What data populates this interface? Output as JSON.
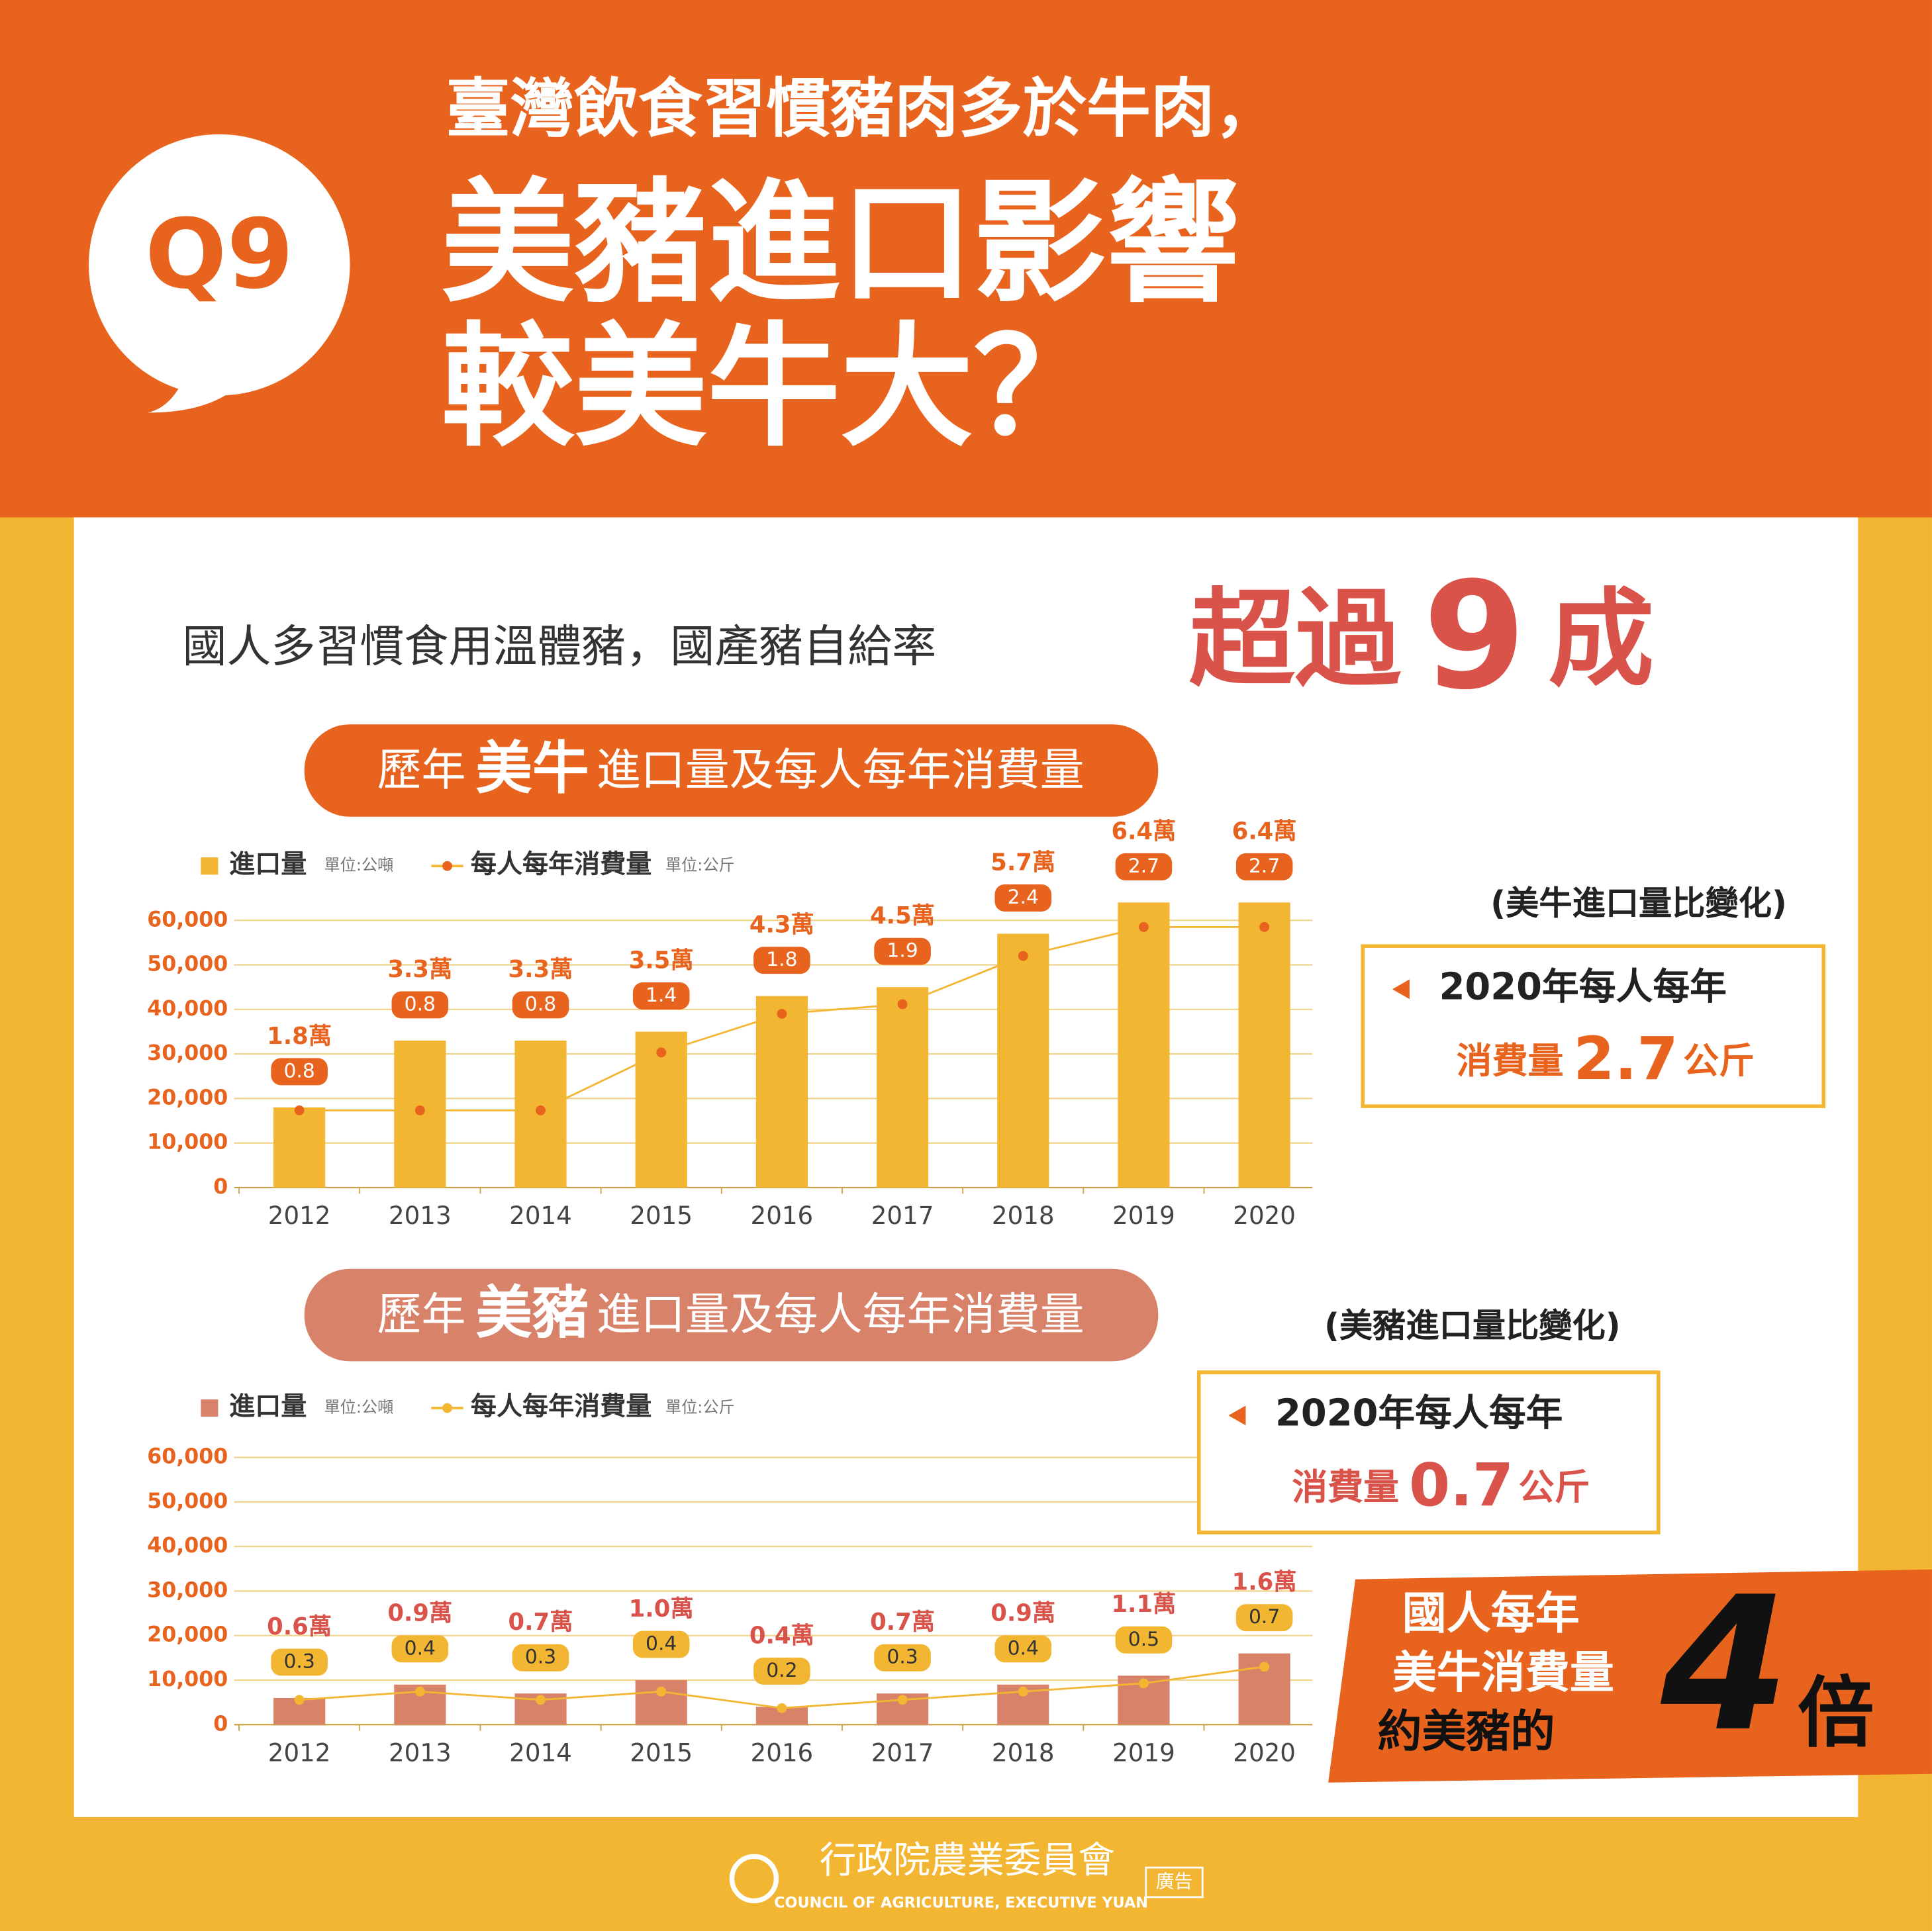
{
  "header": {
    "badge": "Q9",
    "line1": "臺灣飲食習慣豬肉多於牛肉，",
    "line2": "美豬進口影響",
    "line3": "較美牛大？"
  },
  "intro": {
    "text": "國人多習慣食用溫體豬，國產豬自給率",
    "highlight_prefix": "超過",
    "highlight_number": 9,
    "highlight_suffix": "成"
  },
  "chart_data": [
    {
      "type": "combo",
      "title_prefix": "歷年",
      "title_highlight": "美牛",
      "title_suffix": "進口量及每人每年消費量",
      "title_color": "#e8641e",
      "categories": [
        "2012",
        "2013",
        "2014",
        "2015",
        "2016",
        "2017",
        "2018",
        "2019",
        "2020"
      ],
      "series": [
        {
          "name": "進口量",
          "unit": "單位:公噸",
          "color": "#f2b632",
          "label_color": "#e8641e",
          "values": [
            18000,
            33000,
            33000,
            35000,
            43000,
            45000,
            57000,
            64000,
            64000
          ],
          "value_labels": [
            "1.8萬",
            "3.3萬",
            "3.3萬",
            "3.5萬",
            "4.3萬",
            "4.5萬",
            "5.7萬",
            "6.4萬",
            "6.4萬"
          ]
        },
        {
          "name": "每人每年消費量",
          "unit": "單位:公斤",
          "color": "#f2b632",
          "marker_color": "#e8641e",
          "label_color": "#ffffff",
          "axis": "y2",
          "values": [
            0.8,
            0.8,
            0.8,
            1.4,
            1.8,
            1.9,
            2.4,
            2.7,
            2.7
          ]
        }
      ],
      "ylim": [
        0,
        65000
      ],
      "yticks": [
        0,
        {
          "value": 10000,
          "label": "10,000"
        },
        {
          "value": 20000,
          "label": "20,000"
        },
        {
          "value": 30000,
          "label": "30,000"
        },
        {
          "value": 40000,
          "label": "40,000"
        },
        {
          "value": 50000,
          "label": "50,000"
        },
        {
          "value": 60000,
          "label": "60,000"
        }
      ],
      "y2lim": [
        0,
        3
      ],
      "grid": true,
      "callout": {
        "note": "(美牛進口量比變化)",
        "line1": "2020年每人每年",
        "label": "消費量",
        "value": 2.7,
        "unit": "公斤",
        "color": "#e8641e"
      }
    },
    {
      "type": "combo",
      "title_prefix": "歷年",
      "title_highlight": "美豬",
      "title_suffix": "進口量及每人每年消費量",
      "title_color": "#d9826a",
      "categories": [
        "2012",
        "2013",
        "2014",
        "2015",
        "2016",
        "2017",
        "2018",
        "2019",
        "2020"
      ],
      "series": [
        {
          "name": "進口量",
          "unit": "單位:公噸",
          "color": "#d9826a",
          "label_color": "#d9534a",
          "values": [
            6000,
            9000,
            7000,
            10000,
            4000,
            7000,
            9000,
            11000,
            16000
          ],
          "value_labels": [
            "0.6萬",
            "0.9萬",
            "0.7萬",
            "1.0萬",
            "0.4萬",
            "0.7萬",
            "0.9萬",
            "1.1萬",
            "1.6萬"
          ]
        },
        {
          "name": "每人每年消費量",
          "unit": "單位:公斤",
          "color": "#f2b632",
          "marker_color": "#f2b632",
          "label_color": "#333333",
          "axis": "y2",
          "values": [
            0.3,
            0.4,
            0.3,
            0.4,
            0.2,
            0.3,
            0.4,
            0.5,
            0.7
          ]
        }
      ],
      "ylim": [
        0,
        65000
      ],
      "yticks": [
        0,
        {
          "value": 10000,
          "label": "10,000"
        },
        {
          "value": 20000,
          "label": "20,000"
        },
        {
          "value": 30000,
          "label": "30,000"
        },
        {
          "value": 40000,
          "label": "40,000"
        },
        {
          "value": 50000,
          "label": "50,000"
        },
        {
          "value": 60000,
          "label": "60,000"
        }
      ],
      "y2lim": [
        0,
        3.5
      ],
      "grid": true,
      "callout": {
        "note": "(美豬進口量比變化)",
        "line1": "2020年每人每年",
        "label": "消費量",
        "value": 0.7,
        "unit": "公斤",
        "color": "#d9534a"
      }
    }
  ],
  "conclusion": {
    "line1": "國人每年",
    "line2": "美牛消費量",
    "line3": "約美豬的",
    "number": 4,
    "suffix": "倍"
  },
  "footer": {
    "org": "行政院農業委員會",
    "org_en": "COUNCIL OF AGRICULTURE, EXECUTIVE YUAN",
    "tag": "廣告"
  }
}
